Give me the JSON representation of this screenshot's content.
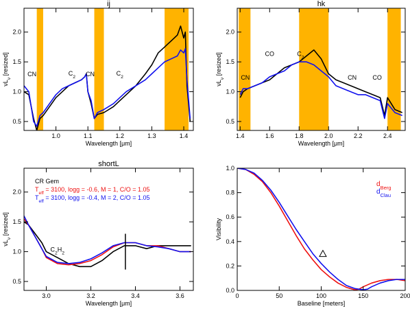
{
  "chart_data": [
    {
      "type": "line",
      "title": "ij",
      "xlabel": "Wavelength [μm]",
      "ylabel": "νL_ν [resized]",
      "xlim": [
        0.9,
        1.43
      ],
      "ylim": [
        0.35,
        2.4
      ],
      "xticks": [
        1.0,
        1.1,
        1.2,
        1.3,
        1.4
      ],
      "xtick_labels": [
        "1.0",
        "1.1",
        "1.2",
        "1.3",
        "1.4"
      ],
      "yticks": [
        0.5,
        1.0,
        1.5,
        2.0
      ],
      "ytick_labels": [
        "0.5",
        "1.0",
        "1.5",
        "2.0"
      ],
      "shaded_bands": [
        [
          0.94,
          0.96
        ],
        [
          1.12,
          1.15
        ],
        [
          1.34,
          1.415
        ]
      ],
      "band_color": "#ffb300",
      "annotations": [
        {
          "text": "CN",
          "x": 0.925,
          "y": 1.26
        },
        {
          "text": "C2",
          "x": 1.05,
          "y": 1.27
        },
        {
          "text": "CN",
          "x": 1.107,
          "y": 1.26
        },
        {
          "text": "C2",
          "x": 1.2,
          "y": 1.27
        }
      ],
      "series": [
        {
          "color": "#000000",
          "x": [
            0.9,
            0.915,
            0.93,
            0.94,
            0.95,
            0.96,
            0.98,
            1.0,
            1.02,
            1.04,
            1.06,
            1.08,
            1.09,
            1.095,
            1.1,
            1.11,
            1.12,
            1.13,
            1.15,
            1.18,
            1.2,
            1.22,
            1.25,
            1.28,
            1.3,
            1.32,
            1.34,
            1.36,
            1.38,
            1.39,
            1.4,
            1.405,
            1.41,
            1.42
          ],
          "y": [
            1.0,
            0.95,
            0.55,
            0.35,
            0.55,
            0.6,
            0.75,
            0.9,
            1.0,
            1.1,
            1.15,
            1.2,
            1.25,
            1.3,
            1.0,
            0.8,
            0.55,
            0.62,
            0.65,
            0.75,
            0.85,
            0.95,
            1.1,
            1.3,
            1.45,
            1.65,
            1.75,
            1.85,
            1.95,
            2.1,
            1.9,
            2.0,
            1.1,
            0.5
          ]
        },
        {
          "color": "#1010ee",
          "x": [
            0.9,
            0.915,
            0.93,
            0.94,
            0.95,
            0.96,
            0.98,
            1.0,
            1.02,
            1.04,
            1.06,
            1.08,
            1.09,
            1.095,
            1.1,
            1.11,
            1.12,
            1.13,
            1.15,
            1.18,
            1.2,
            1.22,
            1.25,
            1.28,
            1.3,
            1.32,
            1.34,
            1.36,
            1.38,
            1.39,
            1.4,
            1.405,
            1.41,
            1.42
          ],
          "y": [
            1.1,
            1.0,
            0.5,
            0.42,
            0.6,
            0.65,
            0.8,
            0.95,
            1.05,
            1.1,
            1.15,
            1.2,
            1.25,
            1.3,
            1.0,
            0.85,
            0.55,
            0.65,
            0.7,
            0.8,
            0.9,
            1.0,
            1.1,
            1.2,
            1.3,
            1.4,
            1.5,
            1.55,
            1.6,
            1.7,
            1.65,
            1.72,
            1.2,
            0.55
          ]
        }
      ]
    },
    {
      "type": "line",
      "title": "hk",
      "xlabel": "Wavelength [μm]",
      "ylabel": "νL_ν [resized]",
      "xlim": [
        1.38,
        2.52
      ],
      "ylim": [
        0.35,
        2.4
      ],
      "xticks": [
        1.4,
        1.6,
        1.8,
        2.0,
        2.2,
        2.4
      ],
      "xtick_labels": [
        "1.4",
        "1.6",
        "1.8",
        "2.0",
        "2.2",
        "2.4"
      ],
      "yticks": [
        0.5,
        1.0,
        1.5,
        2.0
      ],
      "ytick_labels": [
        "0.5",
        "1.0",
        "1.5",
        "2.0"
      ],
      "shaded_bands": [
        [
          1.39,
          1.47
        ],
        [
          1.8,
          2.0
        ],
        [
          2.4,
          2.49
        ]
      ],
      "band_color": "#ffb300",
      "annotations": [
        {
          "text": "CN",
          "x": 1.435,
          "y": 1.2
        },
        {
          "text": "CO",
          "x": 1.6,
          "y": 1.6
        },
        {
          "text": "C2",
          "x": 1.81,
          "y": 1.6
        },
        {
          "text": "CN",
          "x": 2.16,
          "y": 1.2
        },
        {
          "text": "CO",
          "x": 2.33,
          "y": 1.2
        }
      ],
      "series": [
        {
          "color": "#000000",
          "x": [
            1.4,
            1.42,
            1.45,
            1.5,
            1.55,
            1.6,
            1.65,
            1.7,
            1.75,
            1.8,
            1.85,
            1.9,
            1.95,
            2.0,
            2.05,
            2.1,
            2.15,
            2.2,
            2.25,
            2.3,
            2.35,
            2.38,
            2.4,
            2.45,
            2.5
          ],
          "y": [
            0.9,
            1.0,
            1.05,
            1.1,
            1.15,
            1.2,
            1.3,
            1.4,
            1.45,
            1.5,
            1.6,
            1.7,
            1.55,
            1.3,
            1.2,
            1.15,
            1.1,
            1.05,
            1.0,
            0.95,
            0.9,
            0.6,
            0.9,
            0.7,
            0.65
          ]
        },
        {
          "color": "#1010ee",
          "x": [
            1.4,
            1.42,
            1.45,
            1.5,
            1.55,
            1.6,
            1.65,
            1.7,
            1.75,
            1.8,
            1.85,
            1.9,
            1.95,
            2.0,
            2.05,
            2.1,
            2.15,
            2.2,
            2.25,
            2.3,
            2.35,
            2.38,
            2.4,
            2.45,
            2.5
          ],
          "y": [
            0.95,
            1.05,
            1.05,
            1.1,
            1.15,
            1.25,
            1.3,
            1.35,
            1.45,
            1.5,
            1.5,
            1.45,
            1.35,
            1.25,
            1.1,
            1.05,
            1.0,
            0.95,
            0.95,
            0.9,
            0.85,
            0.55,
            0.8,
            0.65,
            0.6
          ]
        }
      ]
    },
    {
      "type": "line",
      "title": "shortL",
      "xlabel": "Wavelength [μm]",
      "ylabel": "νL_ν [resized]",
      "xlim": [
        2.9,
        3.66
      ],
      "ylim": [
        0.35,
        2.4
      ],
      "xticks": [
        3.0,
        3.2,
        3.4,
        3.6
      ],
      "xtick_labels": [
        "3.0",
        "3.2",
        "3.4",
        "3.6"
      ],
      "yticks": [
        0.5,
        1.0,
        1.5,
        2.0
      ],
      "ytick_labels": [
        "0.5",
        "1.0",
        "1.5",
        "2.0"
      ],
      "legend_title": "CR Gem",
      "legend": [
        {
          "label": "T_eff = 3100, logg = -0.6, M = 1, C/O = 1.05",
          "color": "#ee1010"
        },
        {
          "label": "T_eff = 3100, logg = -0.4, M = 2, C/O = 1.05",
          "color": "#1010ee"
        }
      ],
      "annotations": [
        {
          "text": "C2H2",
          "x": 3.05,
          "y": 1.0
        }
      ],
      "vertical_marker": {
        "x": 3.355,
        "ymin": 0.7,
        "ymax": 1.3
      },
      "series": [
        {
          "color": "#000000",
          "x": [
            2.9,
            2.92,
            2.95,
            2.98,
            3.0,
            3.05,
            3.1,
            3.15,
            3.2,
            3.25,
            3.3,
            3.35,
            3.4,
            3.45,
            3.5,
            3.55,
            3.6,
            3.65
          ],
          "y": [
            1.5,
            1.45,
            1.3,
            1.15,
            1.0,
            0.9,
            0.8,
            0.75,
            0.75,
            0.85,
            1.0,
            1.1,
            1.1,
            1.05,
            1.1,
            1.1,
            1.1,
            1.1
          ]
        },
        {
          "color": "#ee1010",
          "x": [
            2.9,
            2.92,
            2.95,
            2.98,
            3.0,
            3.05,
            3.1,
            3.15,
            3.2,
            3.25,
            3.3,
            3.35,
            3.4,
            3.45,
            3.5,
            3.55,
            3.6,
            3.65
          ],
          "y": [
            1.55,
            1.45,
            1.25,
            1.05,
            0.9,
            0.8,
            0.78,
            0.8,
            0.85,
            0.95,
            1.08,
            1.15,
            1.15,
            1.1,
            1.1,
            1.05,
            1.0,
            1.0
          ]
        },
        {
          "color": "#1010ee",
          "x": [
            2.9,
            2.92,
            2.95,
            2.98,
            3.0,
            3.05,
            3.1,
            3.15,
            3.2,
            3.25,
            3.3,
            3.35,
            3.4,
            3.45,
            3.5,
            3.55,
            3.6,
            3.65
          ],
          "y": [
            1.6,
            1.45,
            1.25,
            1.05,
            0.92,
            0.82,
            0.8,
            0.82,
            0.88,
            0.98,
            1.1,
            1.15,
            1.15,
            1.1,
            1.08,
            1.05,
            1.0,
            1.0
          ]
        }
      ]
    },
    {
      "type": "line",
      "title": "",
      "xlabel": "Baseline [meters]",
      "ylabel": "Visibility",
      "xlim": [
        0,
        200
      ],
      "ylim": [
        0,
        1.0
      ],
      "xticks": [
        0,
        50,
        100,
        150,
        200
      ],
      "xtick_labels": [
        "0",
        "50",
        "100",
        "150",
        "200"
      ],
      "yticks": [
        0,
        0.2,
        0.4,
        0.6,
        0.8,
        1.0
      ],
      "ytick_labels": [
        "0.0",
        "0.2",
        "0.4",
        "0.6",
        "0.8",
        "1.0"
      ],
      "legend": [
        {
          "label": "d_Berg",
          "color": "#ee1010"
        },
        {
          "label": "d_Clau",
          "color": "#1010ee"
        }
      ],
      "points": [
        {
          "x": 102,
          "y": 0.3,
          "marker": "triangle"
        }
      ],
      "series": [
        {
          "color": "#ee1010",
          "x": [
            0,
            10,
            20,
            30,
            40,
            50,
            60,
            70,
            80,
            90,
            100,
            110,
            120,
            130,
            140,
            145,
            150,
            160,
            170,
            180,
            190,
            200
          ],
          "y": [
            1.0,
            0.99,
            0.95,
            0.89,
            0.8,
            0.69,
            0.57,
            0.45,
            0.34,
            0.25,
            0.17,
            0.11,
            0.06,
            0.025,
            0.005,
            0.01,
            0.03,
            0.06,
            0.08,
            0.09,
            0.09,
            0.08
          ]
        },
        {
          "color": "#1010ee",
          "x": [
            0,
            10,
            20,
            30,
            40,
            50,
            60,
            70,
            80,
            90,
            100,
            110,
            120,
            130,
            140,
            150,
            155,
            160,
            170,
            180,
            190,
            200
          ],
          "y": [
            1.0,
            0.99,
            0.96,
            0.9,
            0.82,
            0.72,
            0.61,
            0.5,
            0.4,
            0.3,
            0.22,
            0.15,
            0.09,
            0.04,
            0.015,
            0.005,
            0.01,
            0.03,
            0.06,
            0.08,
            0.09,
            0.09
          ]
        }
      ]
    }
  ]
}
